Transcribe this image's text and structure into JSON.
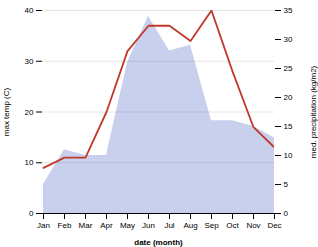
{
  "chart_data": {
    "type": "line",
    "categories": [
      "Jan",
      "Feb",
      "Mar",
      "Apr",
      "May",
      "Jun",
      "Jul",
      "Aug",
      "Sep",
      "Oct",
      "Nov",
      "Dec"
    ],
    "xlabel": "date (month)",
    "ylabel": "max temp (C)",
    "y2label": "med. precipitation (kg/m2)",
    "series": [
      {
        "type": "area",
        "axis": "y2",
        "color": "#c8d0ee",
        "values": [
          5,
          11,
          10,
          10,
          26,
          34,
          28,
          29,
          16,
          16,
          15,
          13
        ]
      },
      {
        "type": "line",
        "color": "#c0392b",
        "values": [
          9,
          11,
          11,
          20,
          32,
          37,
          37,
          34,
          40,
          28,
          17,
          13
        ]
      }
    ],
    "ylim": [
      0,
      40
    ],
    "yticks": [
      0,
      10,
      20,
      30,
      40
    ],
    "y2lim": [
      0,
      35
    ],
    "y2ticks": [
      0,
      5,
      10,
      15,
      20,
      25,
      30,
      35
    ],
    "grid": true
  }
}
